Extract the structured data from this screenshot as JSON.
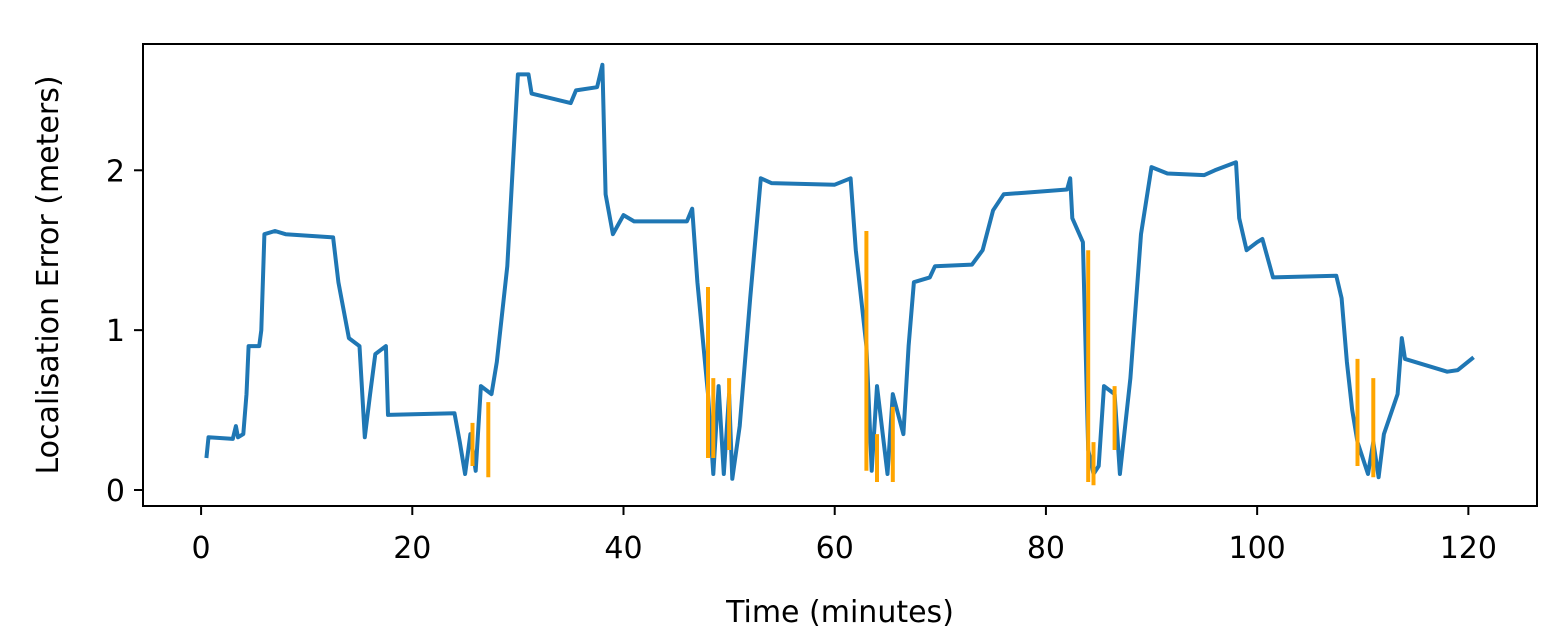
{
  "chart_data": {
    "type": "line",
    "xlabel": "Time (minutes)",
    "ylabel": "Localisation Error (meters)",
    "xlim": [
      -5.5,
      126.5
    ],
    "ylim": [
      -0.1,
      2.79
    ],
    "xticks": [
      0,
      20,
      40,
      60,
      80,
      100,
      120
    ],
    "yticks": [
      0,
      1,
      2
    ],
    "grid": false,
    "series": [
      {
        "color": "#1f77b4",
        "x": [
          0.5,
          0.7,
          3,
          3.3,
          3.5,
          4,
          4.3,
          4.5,
          5.5,
          5.7,
          6,
          7,
          8,
          12.5,
          13,
          14,
          15,
          15.5,
          16,
          16.5,
          17.5,
          17.7,
          24,
          24.5,
          25,
          25.5,
          26,
          26.5,
          27.5,
          28,
          29,
          30,
          31,
          31.3,
          35,
          35.5,
          37.5,
          38,
          38.3,
          39,
          40,
          41,
          46,
          46.5,
          47,
          48,
          48.5,
          49,
          49.5,
          50,
          50.3,
          51,
          52,
          53,
          54,
          60,
          61.5,
          62,
          63,
          63.5,
          64,
          65,
          65.5,
          66.5,
          67,
          67.5,
          69,
          69.5,
          73,
          74,
          75,
          76,
          78,
          82,
          82.3,
          82.5,
          83.5,
          84,
          84.5,
          85,
          85.5,
          86.5,
          87,
          88,
          89,
          90,
          91.5,
          95,
          96,
          98,
          98.3,
          99,
          100,
          100.5,
          101.5,
          107.5,
          108,
          108.5,
          109,
          109.5,
          110.5,
          111,
          111.5,
          112,
          113.3,
          113.7,
          114,
          116,
          118,
          119,
          120.5
        ],
        "values": [
          0.2,
          0.33,
          0.32,
          0.4,
          0.33,
          0.35,
          0.6,
          0.9,
          0.9,
          1.0,
          1.6,
          1.62,
          1.6,
          1.58,
          1.3,
          0.95,
          0.9,
          0.33,
          0.6,
          0.85,
          0.9,
          0.47,
          0.48,
          0.3,
          0.1,
          0.35,
          0.12,
          0.65,
          0.6,
          0.8,
          1.4,
          2.6,
          2.6,
          2.48,
          2.42,
          2.5,
          2.52,
          2.66,
          1.85,
          1.6,
          1.72,
          1.68,
          1.68,
          1.76,
          1.3,
          0.6,
          0.1,
          0.65,
          0.1,
          0.6,
          0.07,
          0.4,
          1.2,
          1.95,
          1.92,
          1.91,
          1.95,
          1.5,
          0.9,
          0.12,
          0.65,
          0.1,
          0.6,
          0.35,
          0.9,
          1.3,
          1.33,
          1.4,
          1.41,
          1.5,
          1.75,
          1.85,
          1.86,
          1.88,
          1.95,
          1.7,
          1.55,
          0.25,
          0.1,
          0.15,
          0.65,
          0.6,
          0.1,
          0.7,
          1.6,
          2.02,
          1.98,
          1.97,
          2.0,
          2.05,
          1.7,
          1.5,
          1.55,
          1.57,
          1.33,
          1.34,
          1.2,
          0.8,
          0.5,
          0.3,
          0.1,
          0.3,
          0.08,
          0.35,
          0.6,
          0.95,
          0.82,
          0.78,
          0.74,
          0.75,
          0.83
        ]
      },
      {
        "color": "#ffa500",
        "x": [
          25.7,
          25.7,
          25.7,
          27.2,
          27.2,
          27.2,
          48,
          48,
          48,
          48.5,
          48.5,
          48.5,
          50,
          50,
          50,
          63,
          63,
          63,
          64,
          64,
          64,
          65.5,
          65.5,
          65.5,
          84,
          84,
          84,
          84.5,
          84.5,
          84.5,
          86.5,
          86.5,
          86.5,
          109.5,
          109.5,
          109.5,
          111,
          111
        ],
        "values": [
          0.42,
          0.15,
          null,
          0.55,
          0.08,
          null,
          1.27,
          0.2,
          null,
          0.7,
          0.2,
          null,
          0.7,
          0.25,
          null,
          1.62,
          0.12,
          null,
          0.35,
          0.05,
          null,
          0.52,
          0.05,
          null,
          1.5,
          0.05,
          null,
          0.3,
          0.03,
          null,
          0.65,
          0.25,
          null,
          0.82,
          0.15,
          null,
          0.7,
          0.08
        ]
      }
    ]
  }
}
